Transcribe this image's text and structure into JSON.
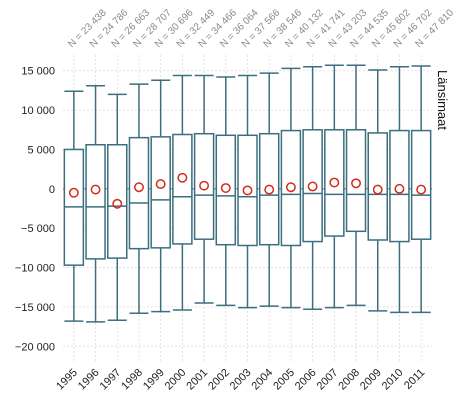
{
  "chart_data": {
    "type": "boxplot",
    "region_label": "Länsimaat",
    "categories": [
      "1995",
      "1996",
      "1997",
      "1998",
      "1999",
      "2000",
      "2001",
      "2002",
      "2003",
      "2004",
      "2005",
      "2006",
      "2007",
      "2008",
      "2009",
      "2010",
      "2011"
    ],
    "n_labels": [
      "N = 23 438",
      "N = 24 786",
      "N = 26 663",
      "N = 28 707",
      "N = 30 696",
      "N = 32 449",
      "N = 34 466",
      "N = 36 064",
      "N = 37 566",
      "N = 38 546",
      "N = 40 132",
      "N = 41 741",
      "N = 43 203",
      "N = 44 535",
      "N = 45 602",
      "N = 46 702",
      "N = 47 810"
    ],
    "whisker_low": [
      -16800,
      -16900,
      -16700,
      -15800,
      -15600,
      -15400,
      -14500,
      -14800,
      -15100,
      -14900,
      -15100,
      -15300,
      -15100,
      -14800,
      -15500,
      -15700,
      -15700
    ],
    "q1": [
      -9700,
      -8900,
      -8800,
      -7600,
      -7500,
      -7000,
      -6400,
      -7100,
      -7200,
      -7100,
      -7200,
      -6700,
      -6000,
      -5400,
      -6500,
      -6700,
      -6400
    ],
    "median": [
      -2300,
      -2300,
      -2200,
      -1800,
      -1400,
      -1000,
      -800,
      -900,
      -1000,
      -800,
      -700,
      -600,
      -700,
      -700,
      -700,
      -700,
      -800
    ],
    "q3": [
      5000,
      5600,
      5600,
      6500,
      6600,
      6900,
      7000,
      6800,
      6800,
      7000,
      7400,
      7500,
      7500,
      7500,
      7100,
      7400,
      7400
    ],
    "whisker_high": [
      12400,
      13100,
      12000,
      13300,
      13800,
      14400,
      14400,
      14200,
      14400,
      14700,
      15300,
      15500,
      15700,
      15700,
      15100,
      15500,
      15600
    ],
    "mean": [
      -500,
      -100,
      -1900,
      200,
      600,
      1400,
      400,
      100,
      -200,
      -100,
      200,
      300,
      800,
      700,
      -100,
      0,
      -100
    ],
    "yticks": [
      15000,
      10000,
      5000,
      0,
      -5000,
      -10000,
      -15000,
      -20000
    ],
    "ytick_labels": [
      "15 000",
      "10 000",
      "5 000",
      "0",
      "−5 000",
      "−10 000",
      "−15 000",
      "−20 000"
    ],
    "ylim": [
      -22000,
      17000
    ],
    "colors": {
      "box": "#3b6e7e",
      "mean": "#d42a1a",
      "grid": "#d9d9d9",
      "zero": "#7a7a7a"
    }
  }
}
